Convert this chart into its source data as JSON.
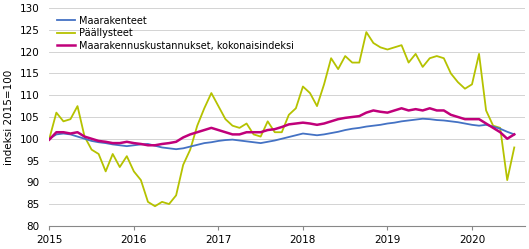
{
  "title": "",
  "ylabel": "indeksi 2015=100",
  "ylim": [
    80,
    130
  ],
  "yticks": [
    80,
    85,
    90,
    95,
    100,
    105,
    110,
    115,
    120,
    125,
    130
  ],
  "xlim_start": 2015.0,
  "xlim_end": 2020.625,
  "xtick_labels": [
    "2015",
    "2016",
    "2017",
    "2018",
    "2019",
    "2020"
  ],
  "xtick_positions": [
    2015.0,
    2016.0,
    2017.0,
    2018.0,
    2019.0,
    2020.0
  ],
  "legend_labels": [
    "Maarakenteet",
    "Päällysteet",
    "Maarakennuskustannukset, kokonaisindeksi"
  ],
  "colors": {
    "maarakenteet": "#4472c4",
    "paallysteet": "#b5c200",
    "kokonaisindeksi": "#c0007a"
  },
  "line_widths": {
    "maarakenteet": 1.3,
    "paallysteet": 1.3,
    "kokonaisindeksi": 1.8
  },
  "maarakenteet": [
    100.0,
    101.0,
    101.2,
    101.0,
    100.5,
    100.0,
    99.5,
    99.2,
    99.0,
    98.7,
    98.5,
    98.3,
    98.5,
    98.7,
    98.8,
    98.4,
    98.0,
    97.8,
    97.6,
    97.8,
    98.2,
    98.6,
    99.0,
    99.2,
    99.5,
    99.7,
    99.8,
    99.6,
    99.4,
    99.2,
    99.0,
    99.3,
    99.6,
    100.0,
    100.4,
    100.8,
    101.2,
    101.0,
    100.8,
    101.0,
    101.3,
    101.6,
    102.0,
    102.3,
    102.5,
    102.8,
    103.0,
    103.2,
    103.5,
    103.7,
    104.0,
    104.2,
    104.4,
    104.6,
    104.5,
    104.3,
    104.2,
    104.0,
    103.8,
    103.5,
    103.2,
    103.0,
    103.2,
    102.8,
    102.3,
    101.6,
    101.0
  ],
  "paallysteet": [
    100.0,
    106.0,
    104.0,
    104.5,
    107.5,
    100.5,
    97.5,
    96.5,
    92.5,
    96.5,
    93.5,
    96.0,
    92.5,
    90.5,
    85.5,
    84.5,
    85.5,
    85.0,
    87.0,
    94.0,
    97.5,
    103.0,
    107.0,
    110.5,
    107.5,
    104.5,
    103.0,
    102.5,
    103.5,
    101.0,
    100.5,
    104.0,
    101.5,
    101.5,
    105.5,
    107.0,
    112.0,
    110.5,
    107.5,
    112.5,
    118.5,
    116.0,
    119.0,
    117.5,
    117.5,
    124.5,
    122.0,
    121.0,
    120.5,
    121.0,
    121.5,
    117.5,
    119.5,
    116.5,
    118.5,
    119.0,
    118.5,
    115.0,
    113.0,
    111.5,
    112.5,
    119.5,
    106.5,
    103.0,
    102.5,
    90.5,
    98.0
  ],
  "kokonaisindeksi": [
    99.8,
    101.5,
    101.5,
    101.2,
    101.5,
    100.5,
    100.0,
    99.5,
    99.3,
    99.0,
    99.0,
    99.3,
    99.0,
    98.8,
    98.5,
    98.5,
    98.8,
    99.0,
    99.3,
    100.3,
    101.0,
    101.5,
    102.0,
    102.5,
    102.0,
    101.5,
    101.0,
    101.0,
    101.5,
    101.5,
    101.5,
    102.0,
    102.2,
    102.7,
    103.3,
    103.5,
    103.7,
    103.5,
    103.2,
    103.5,
    104.0,
    104.5,
    104.8,
    105.0,
    105.2,
    106.0,
    106.5,
    106.2,
    106.0,
    106.5,
    107.0,
    106.5,
    106.8,
    106.5,
    107.0,
    106.5,
    106.5,
    105.5,
    105.0,
    104.5,
    104.5,
    104.5,
    103.5,
    102.5,
    101.5,
    100.0,
    101.0
  ]
}
